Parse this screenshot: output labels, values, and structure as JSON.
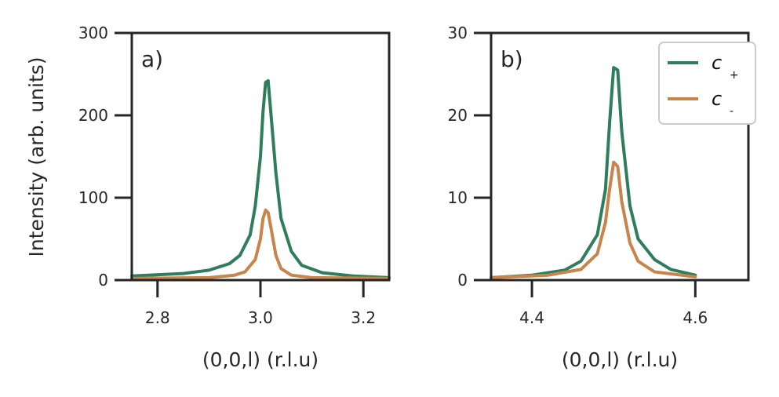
{
  "chart_data": [
    {
      "type": "line",
      "panel_label": "a)",
      "xlabel": "(0,0,l) (r.l.u)",
      "ylabel": "Intensity (arb. units)",
      "xlim": [
        2.75,
        3.25
      ],
      "ylim": [
        0,
        300
      ],
      "xticks": [
        "2.8",
        "3.0",
        "3.2"
      ],
      "yticks": [
        "0",
        "100",
        "200",
        "300"
      ],
      "series": [
        {
          "name": "c+",
          "color": "#2e7d5b",
          "x": [
            2.75,
            2.85,
            2.9,
            2.94,
            2.96,
            2.98,
            2.99,
            3.0,
            3.005,
            3.01,
            3.015,
            3.02,
            3.03,
            3.04,
            3.06,
            3.08,
            3.12,
            3.18,
            3.25
          ],
          "y": [
            5,
            8,
            12,
            20,
            30,
            55,
            90,
            150,
            205,
            240,
            242,
            205,
            130,
            75,
            35,
            18,
            9,
            5,
            3
          ]
        },
        {
          "name": "c-",
          "color": "#c8844a",
          "x": [
            2.75,
            2.9,
            2.95,
            2.97,
            2.99,
            3.0,
            3.005,
            3.01,
            3.015,
            3.02,
            3.03,
            3.04,
            3.06,
            3.1,
            3.25
          ],
          "y": [
            2,
            3,
            6,
            10,
            25,
            50,
            75,
            85,
            82,
            65,
            30,
            14,
            6,
            3,
            2
          ]
        }
      ]
    },
    {
      "type": "line",
      "panel_label": "b)",
      "xlabel": "(0,0,l) (r.l.u)",
      "ylabel": "",
      "xlim": [
        4.35,
        4.665
      ],
      "ylim": [
        0,
        30
      ],
      "xticks": [
        "4.4",
        "4.6"
      ],
      "yticks": [
        "0",
        "10",
        "20",
        "30"
      ],
      "series": [
        {
          "name": "c+",
          "color": "#2e7d5b",
          "x": [
            4.35,
            4.4,
            4.44,
            4.46,
            4.48,
            4.49,
            4.495,
            4.5,
            4.505,
            4.51,
            4.52,
            4.53,
            4.55,
            4.57,
            4.6
          ],
          "y": [
            0.3,
            0.6,
            1.2,
            2.3,
            5.5,
            11,
            19,
            25.8,
            25.5,
            18,
            9,
            5,
            2.5,
            1.3,
            0.6
          ]
        },
        {
          "name": "c-",
          "color": "#c8844a",
          "x": [
            4.35,
            4.42,
            4.46,
            4.48,
            4.49,
            4.495,
            4.5,
            4.505,
            4.51,
            4.52,
            4.53,
            4.55,
            4.6
          ],
          "y": [
            0.3,
            0.6,
            1.3,
            3.2,
            7,
            11,
            14.3,
            13.8,
            9.5,
            4.5,
            2.3,
            1,
            0.4
          ]
        }
      ],
      "legend": {
        "position": "top-right",
        "entries": [
          {
            "base": "c",
            "sub": "+"
          },
          {
            "base": "c",
            "sub": "-"
          }
        ]
      }
    }
  ]
}
